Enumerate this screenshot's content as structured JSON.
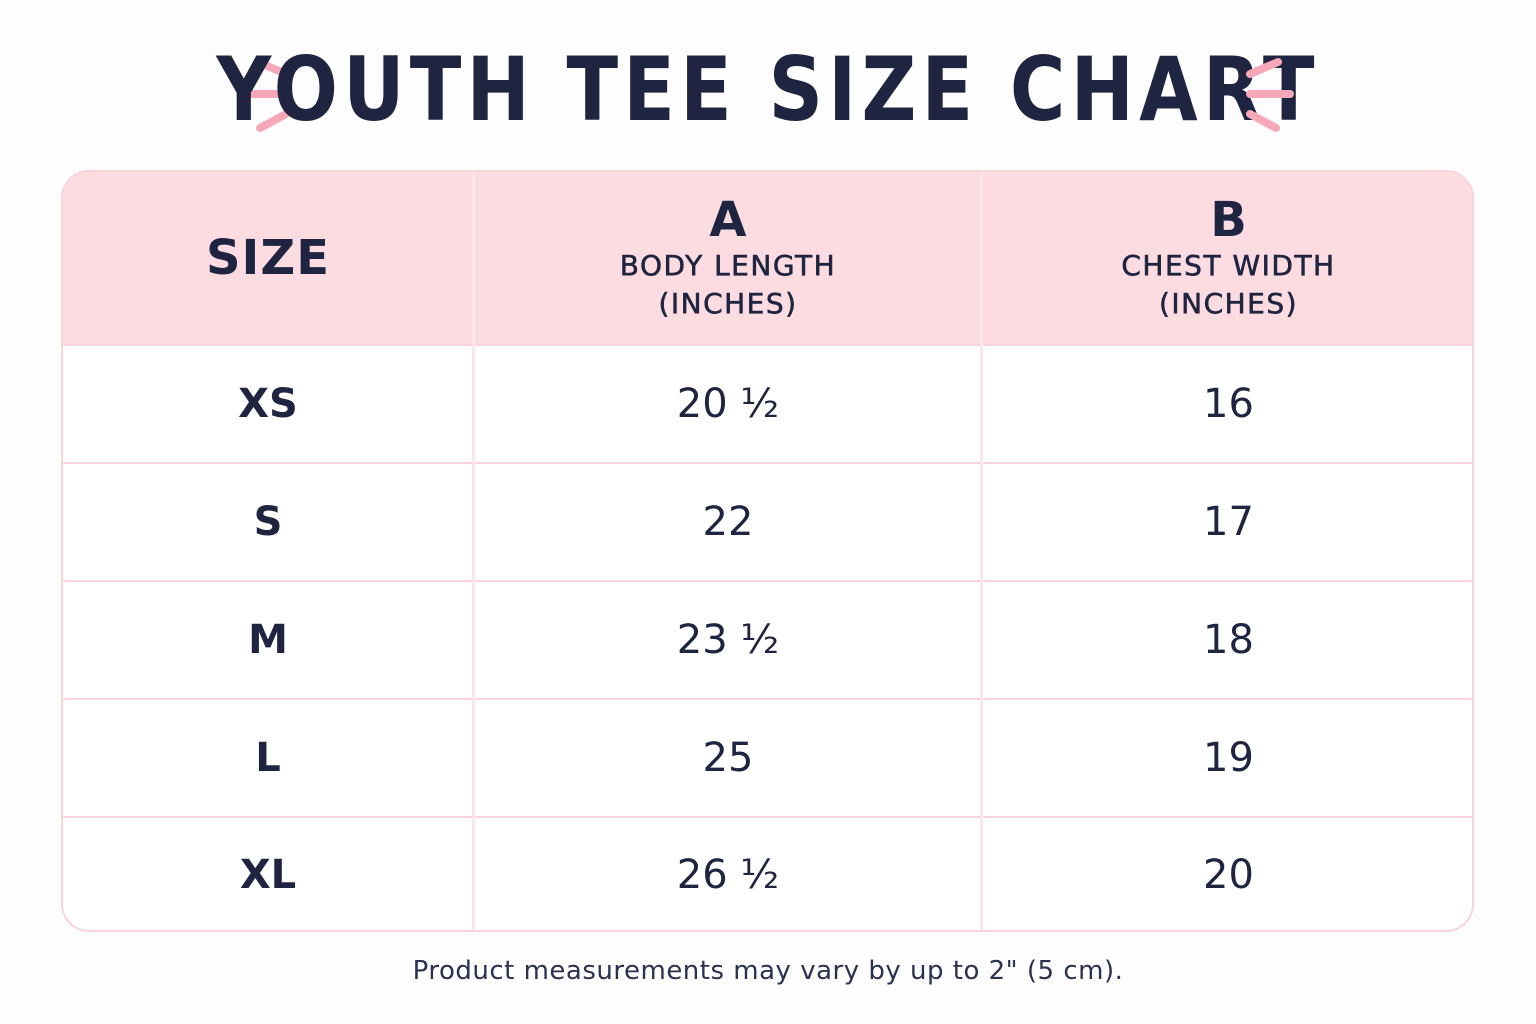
{
  "title": "YOUTH TEE SIZE CHART",
  "colors": {
    "accent": "#f7a8b8",
    "header_bg": "#fcdbe1",
    "text": "#1f2540"
  },
  "table": {
    "headers": [
      {
        "letter": "",
        "label": "SIZE",
        "unit": ""
      },
      {
        "letter": "A",
        "label": "BODY LENGTH",
        "unit": "(INCHES)"
      },
      {
        "letter": "B",
        "label": "CHEST WIDTH",
        "unit": "(INCHES)"
      }
    ],
    "rows": [
      {
        "size": "XS",
        "length": "20 ½",
        "chest": "16"
      },
      {
        "size": "S",
        "length": "22",
        "chest": "17"
      },
      {
        "size": "M",
        "length": "23 ½",
        "chest": "18"
      },
      {
        "size": "L",
        "length": "25",
        "chest": "19"
      },
      {
        "size": "XL",
        "length": "26 ½",
        "chest": "20"
      }
    ]
  },
  "note": "Product measurements may vary by up to 2\" (5 cm)."
}
